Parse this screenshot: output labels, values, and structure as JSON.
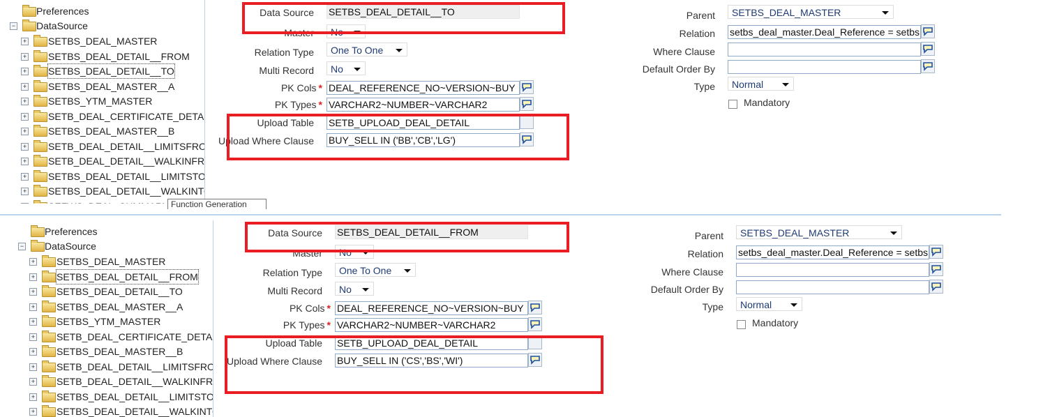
{
  "panels": [
    {
      "tree": {
        "preferences": "Preferences",
        "datasource": "DataSource",
        "items": [
          "SETBS_DEAL_MASTER",
          "SETBS_DEAL_DETAIL__FROM",
          "SETBS_DEAL_DETAIL__TO",
          "SETBS_DEAL_MASTER__A",
          "SETBS_YTM_MASTER",
          "SETB_DEAL_CERTIFICATE_DETAIL",
          "SETBS_DEAL_MASTER__B",
          "SETB_DEAL_DETAIL__LIMITSFROM",
          "SETB_DEAL_DETAIL__WALKINFROM",
          "SETBS_DEAL_DETAIL__LIMITSTO",
          "SETBS_DEAL_DETAIL__WALKINTO",
          "SEFWS_DEAL_SUMMARY"
        ],
        "selected_index": 2,
        "tooltip": "Function Generation"
      },
      "form": {
        "data_source_label": "Data Source",
        "data_source": "SETBS_DEAL_DETAIL__TO",
        "master_label": "Master",
        "master": "No",
        "relation_type_label": "Relation Type",
        "relation_type": "One To One",
        "multi_record_label": "Multi Record",
        "multi_record": "No",
        "pk_cols_label": "PK Cols",
        "pk_cols": "DEAL_REFERENCE_NO~VERSION~BUY",
        "pk_types_label": "PK Types",
        "pk_types": "VARCHAR2~NUMBER~VARCHAR2",
        "upload_table_label": "Upload Table",
        "upload_table": "SETB_UPLOAD_DEAL_DETAIL",
        "upload_where_label": "Upload Where Clause",
        "upload_where": "BUY_SELL IN ('BB','CB','LG')",
        "required_mark": "*",
        "parent_label": "Parent",
        "parent": "SETBS_DEAL_MASTER",
        "relation_label": "Relation",
        "relation": "setbs_deal_master.Deal_Reference = setbs",
        "where_clause_label": "Where Clause",
        "where_clause": "",
        "default_order_label": "Default Order By",
        "default_order": "",
        "type_label": "Type",
        "type": "Normal",
        "mandatory_label": "Mandatory",
        "mandatory": false
      }
    },
    {
      "tree": {
        "preferences": "Preferences",
        "datasource": "DataSource",
        "items": [
          "SETBS_DEAL_MASTER",
          "SETBS_DEAL_DETAIL__FROM",
          "SETBS_DEAL_DETAIL__TO",
          "SETBS_DEAL_MASTER__A",
          "SETBS_YTM_MASTER",
          "SETB_DEAL_CERTIFICATE_DETAIL",
          "SETBS_DEAL_MASTER__B",
          "SETB_DEAL_DETAIL__LIMITSFROM",
          "SETB_DEAL_DETAIL__WALKINFROM",
          "SETBS_DEAL_DETAIL__LIMITSTO",
          "SETBS_DEAL_DETAIL__WALKINTO"
        ],
        "selected_index": 1
      },
      "form": {
        "data_source_label": "Data Source",
        "data_source": "SETBS_DEAL_DETAIL__FROM",
        "master_label": "Master",
        "master": "No",
        "relation_type_label": "Relation Type",
        "relation_type": "One To One",
        "multi_record_label": "Multi Record",
        "multi_record": "No",
        "pk_cols_label": "PK Cols",
        "pk_cols": "DEAL_REFERENCE_NO~VERSION~BUY",
        "pk_types_label": "PK Types",
        "pk_types": "VARCHAR2~NUMBER~VARCHAR2",
        "upload_table_label": "Upload Table",
        "upload_table": "SETB_UPLOAD_DEAL_DETAIL",
        "upload_where_label": "Upload Where Clause",
        "upload_where": "BUY_SELL IN ('CS','BS','WI')",
        "required_mark": "*",
        "parent_label": "Parent",
        "parent": "SETBS_DEAL_MASTER",
        "relation_label": "Relation",
        "relation": "setbs_deal_master.Deal_Reference = setbs",
        "where_clause_label": "Where Clause",
        "where_clause": "",
        "default_order_label": "Default Order By",
        "default_order": "",
        "type_label": "Type",
        "type": "Normal",
        "mandatory_label": "Mandatory",
        "mandatory": false
      }
    }
  ],
  "colors": {
    "highlight_box": "#ea1c24",
    "input_border": "#8eaacb",
    "divider": "#b8d3ec"
  }
}
